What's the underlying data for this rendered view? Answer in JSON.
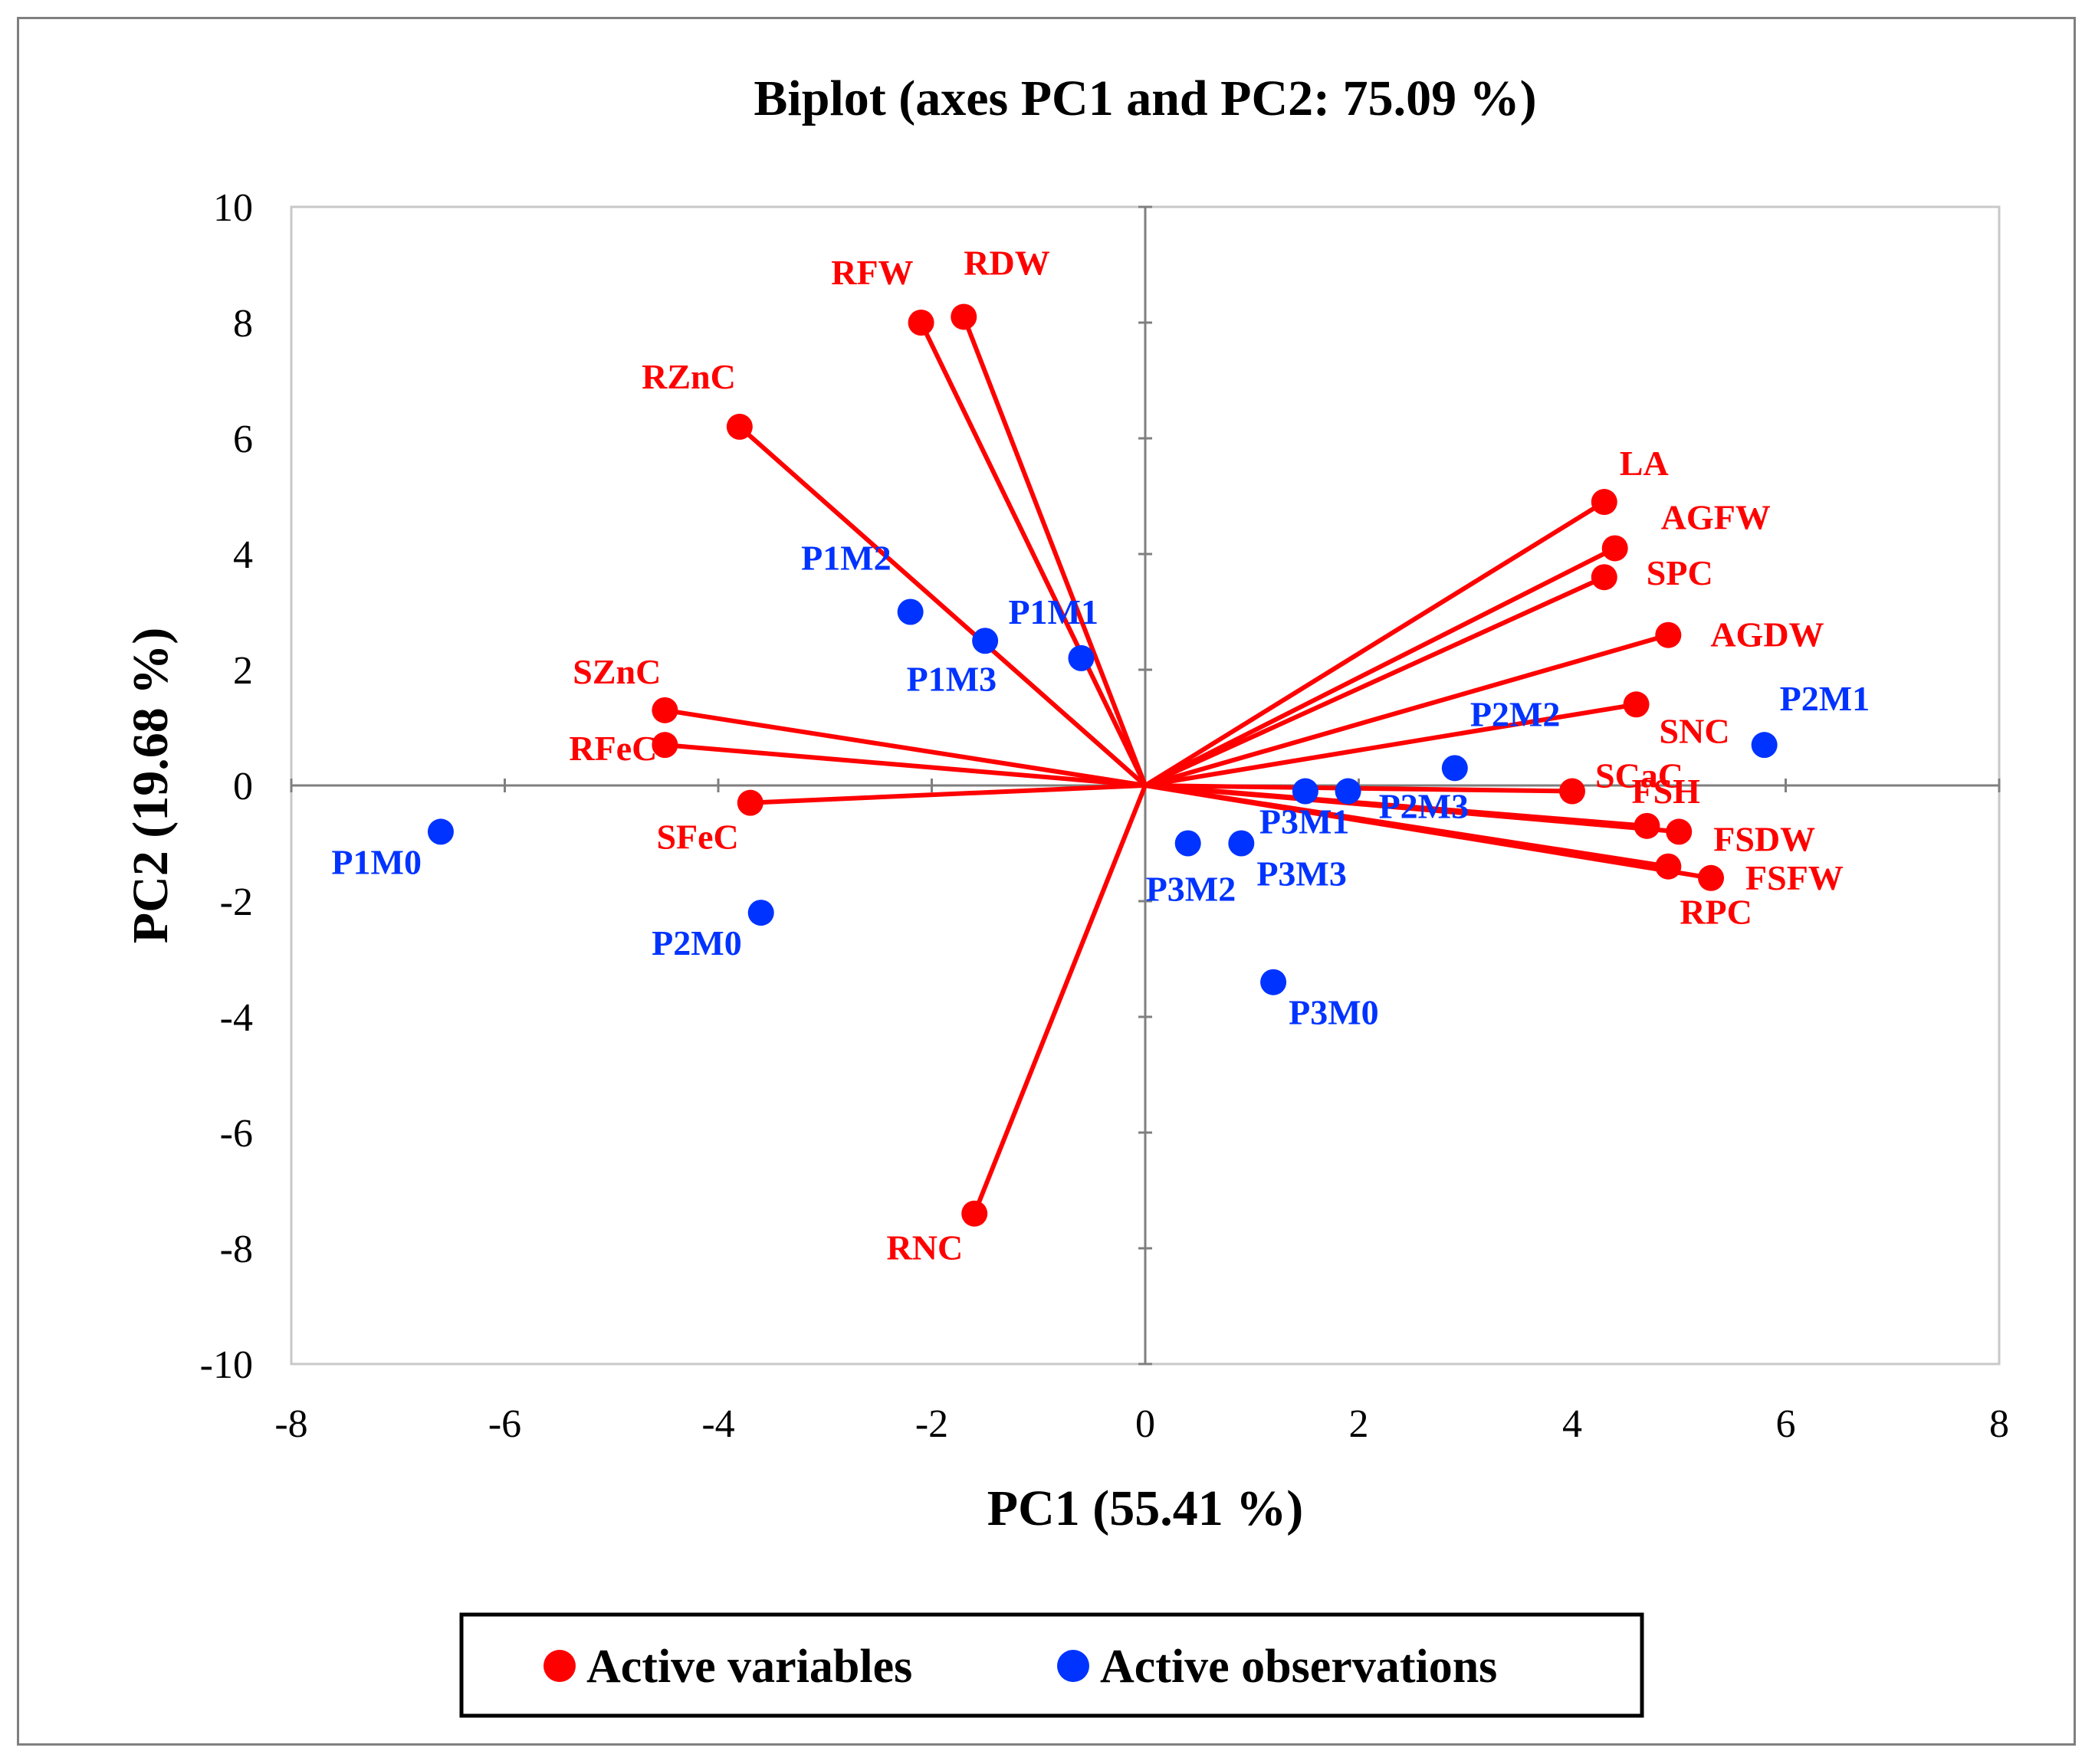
{
  "chart_data": {
    "type": "scatter",
    "title": "Biplot (axes PC1 and PC2: 75.09 %)",
    "xlabel": "PC1 (55.41 %)",
    "ylabel": "PC2 (19.68 %)",
    "xlim": [
      -8,
      8
    ],
    "ylim": [
      -10,
      10
    ],
    "x_ticks": [
      "-8",
      "-6",
      "-4",
      "-2",
      "0",
      "2",
      "4",
      "6",
      "8"
    ],
    "y_ticks": [
      "10",
      "8",
      "6",
      "4",
      "2",
      "0",
      "-2",
      "-4",
      "-6",
      "-8",
      "-10"
    ],
    "grid": false,
    "legend_placement": "bottom",
    "colors": {
      "variables": "#ff0000",
      "observations": "#0033ff"
    },
    "series": [
      {
        "name": "Active variables",
        "kind": "vectors",
        "points": [
          {
            "label": "RFW",
            "x": -2.1,
            "y": 8.0
          },
          {
            "label": "RDW",
            "x": -1.7,
            "y": 8.1
          },
          {
            "label": "RZnC",
            "x": -3.8,
            "y": 6.2
          },
          {
            "label": "LA",
            "x": 4.3,
            "y": 4.9
          },
          {
            "label": "AGFW",
            "x": 4.4,
            "y": 4.1
          },
          {
            "label": "SPC",
            "x": 4.3,
            "y": 3.6
          },
          {
            "label": "AGDW",
            "x": 4.9,
            "y": 2.6
          },
          {
            "label": "SNC",
            "x": 4.6,
            "y": 1.4
          },
          {
            "label": "SCaC",
            "x": 4.0,
            "y": -0.1
          },
          {
            "label": "FSH",
            "x": 4.7,
            "y": -0.7
          },
          {
            "label": "FSDW",
            "x": 5.0,
            "y": -0.8
          },
          {
            "label": "FSFW",
            "x": 5.3,
            "y": -1.6
          },
          {
            "label": "RPC",
            "x": 4.9,
            "y": -1.4
          },
          {
            "label": "SZnC",
            "x": -4.5,
            "y": 1.3
          },
          {
            "label": "RFeC",
            "x": -4.5,
            "y": 0.7
          },
          {
            "label": "SFeC",
            "x": -3.7,
            "y": -0.3
          },
          {
            "label": "RNC",
            "x": -1.6,
            "y": -7.4
          }
        ]
      },
      {
        "name": "Active observations",
        "kind": "points",
        "points": [
          {
            "label": "P1M0",
            "x": -6.6,
            "y": -0.8
          },
          {
            "label": "P2M0",
            "x": -3.6,
            "y": -2.2
          },
          {
            "label": "P1M2",
            "x": -2.2,
            "y": 3.0
          },
          {
            "label": "P1M3",
            "x": -1.5,
            "y": 2.5
          },
          {
            "label": "P1M1",
            "x": -0.6,
            "y": 2.2
          },
          {
            "label": "P3M2",
            "x": 0.4,
            "y": -1.0
          },
          {
            "label": "P3M3",
            "x": 0.9,
            "y": -1.0
          },
          {
            "label": "P3M0",
            "x": 1.2,
            "y": -3.4
          },
          {
            "label": "P3M1",
            "x": 1.5,
            "y": -0.1
          },
          {
            "label": "P2M3",
            "x": 1.9,
            "y": -0.1
          },
          {
            "label": "P2M2",
            "x": 2.9,
            "y": 0.3
          },
          {
            "label": "P2M1",
            "x": 5.8,
            "y": 0.7
          }
        ]
      }
    ]
  }
}
